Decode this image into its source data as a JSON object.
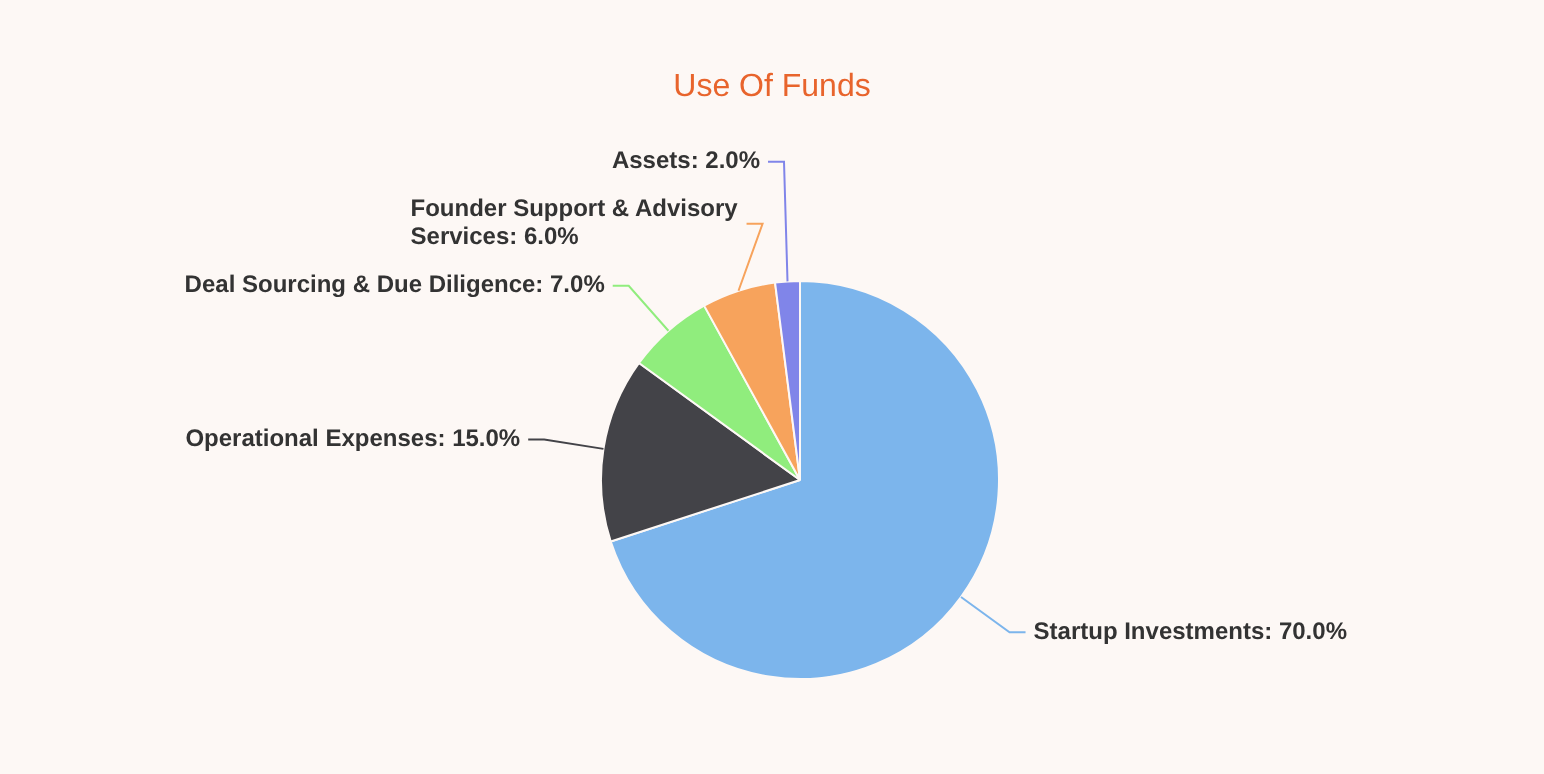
{
  "chart_data": {
    "type": "pie",
    "title": "Use Of Funds",
    "categories": [
      "Startup Investments",
      "Operational Expenses",
      "Deal Sourcing & Due Diligence",
      "Founder Support & Advisory Services",
      "Assets"
    ],
    "values": [
      70,
      15,
      7,
      6,
      2
    ],
    "value_labels": [
      "70.0%",
      "15.0%",
      "7.0%",
      "6.0%",
      "2.0%"
    ],
    "colors": [
      "#7cb5ec",
      "#434348",
      "#90ed7d",
      "#f7a35c",
      "#8085e9"
    ]
  }
}
